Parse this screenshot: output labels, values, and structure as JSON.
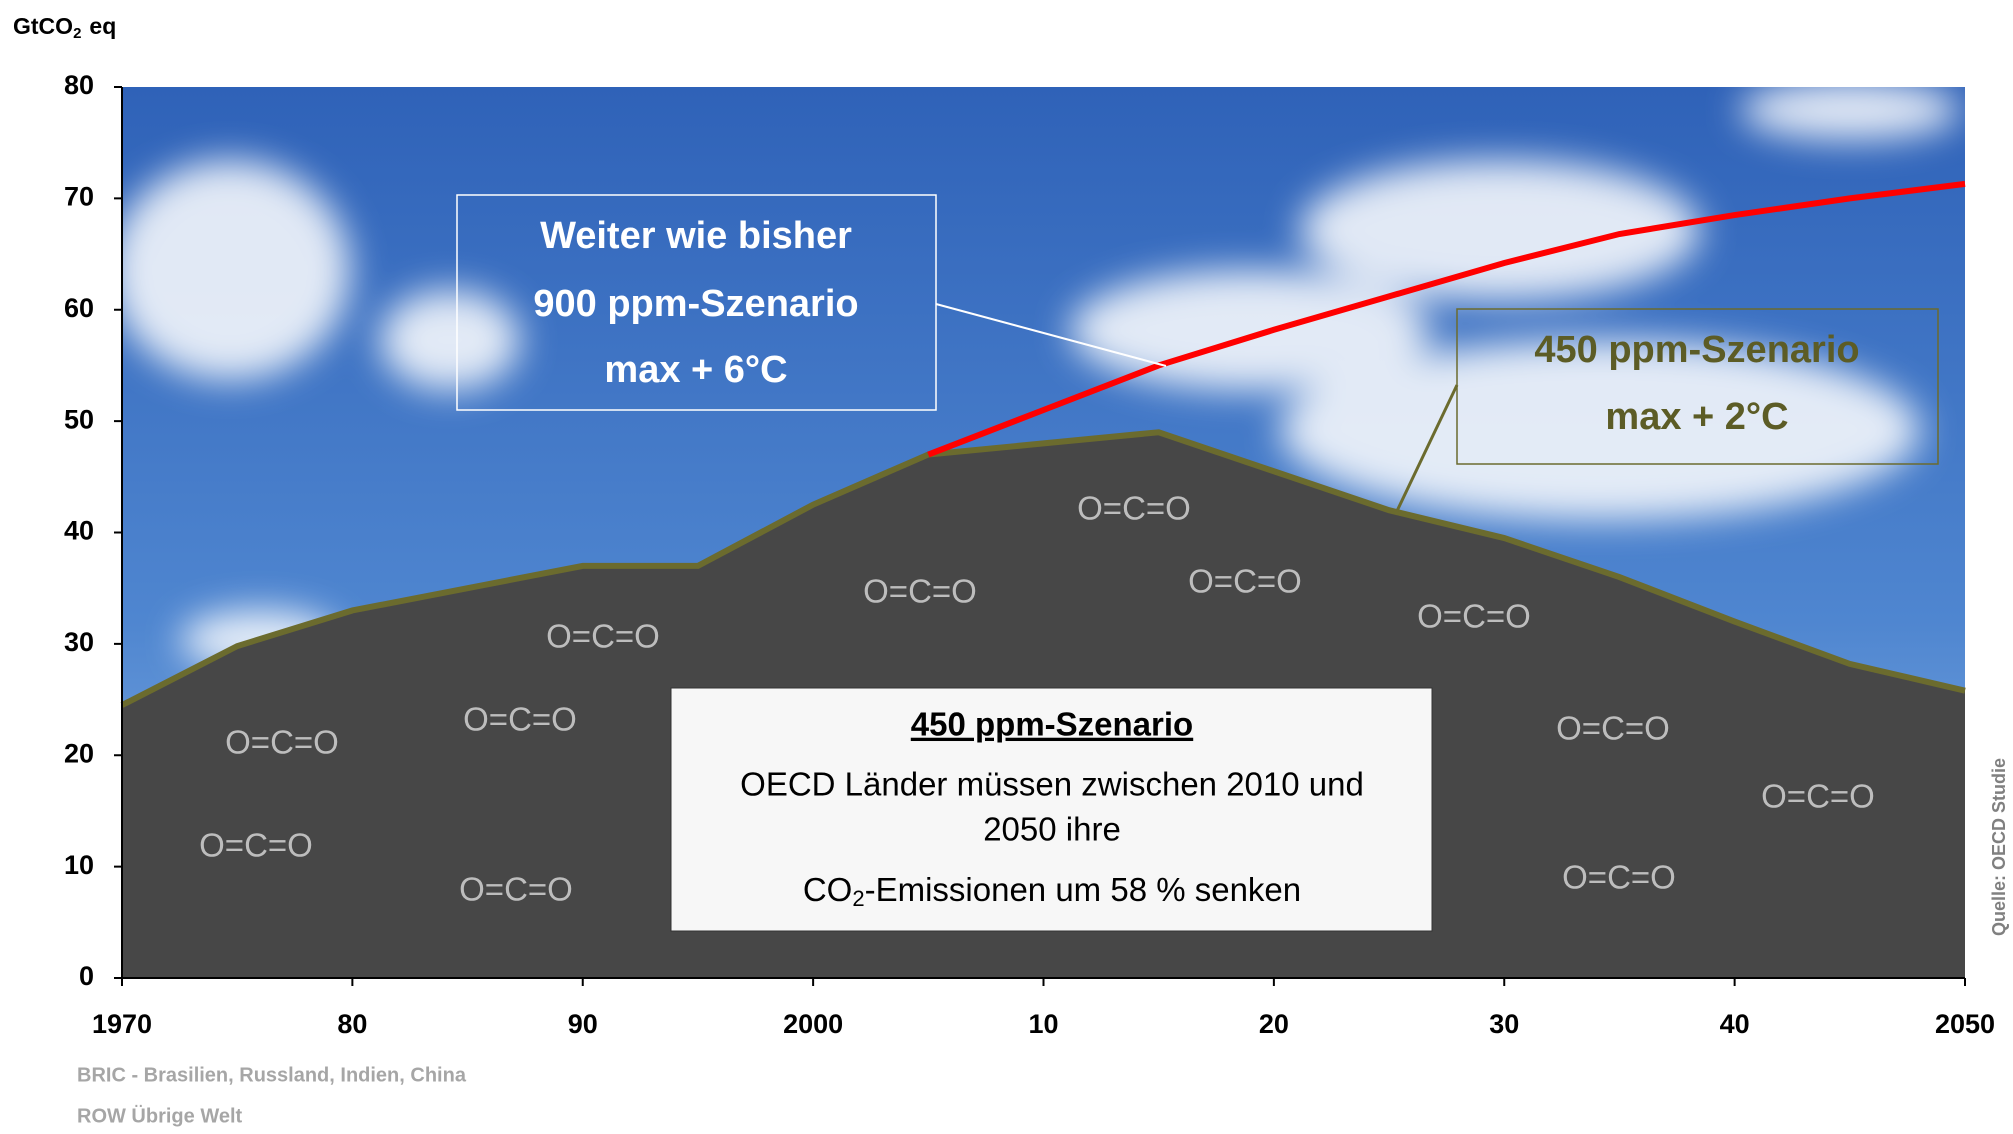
{
  "chart_data": {
    "type": "area",
    "y_label": [
      "GtCO",
      "2",
      "eq"
    ],
    "ylim": [
      0,
      80
    ],
    "yticks": [
      0,
      10,
      20,
      30,
      40,
      50,
      60,
      70,
      80
    ],
    "xlim": [
      1970,
      2050
    ],
    "xticks": [
      1970,
      {
        "value": 1980,
        "label": "80"
      },
      {
        "value": 1990,
        "label": "90"
      },
      2000,
      {
        "value": 2010,
        "label": "10"
      },
      {
        "value": 2020,
        "label": "20"
      },
      {
        "value": 2030,
        "label": "30"
      },
      {
        "value": 2040,
        "label": "40"
      },
      2050
    ],
    "series": [
      {
        "name": "450 ppm-Szenario",
        "style": "area",
        "color": "#474747",
        "line_color": "#6b6b2e",
        "x": [
          1970,
          1975,
          1980,
          1985,
          1990,
          1995,
          2000,
          2005,
          2010,
          2015,
          2020,
          2025,
          2030,
          2035,
          2040,
          2045,
          2050
        ],
        "values": [
          24.5,
          29.8,
          33,
          35,
          37,
          37,
          42.5,
          47,
          48,
          49,
          45.5,
          42,
          39.5,
          36,
          32,
          28.2,
          25.8
        ]
      },
      {
        "name": "900 ppm-Szenario",
        "style": "line",
        "color": "#ff0000",
        "x": [
          2005,
          2010,
          2015,
          2020,
          2025,
          2030,
          2035,
          2040,
          2045,
          2050
        ],
        "values": [
          47,
          51,
          55,
          58.2,
          61.2,
          64.2,
          66.8,
          68.5,
          70,
          71.3
        ]
      }
    ],
    "annotations": {
      "bau_1": "Weiter wie bisher",
      "bau_3": "max + 6°C",
      "low_2": "max + 2°C",
      "box_title": "450 ppm-Szenario",
      "box_line1": "OECD Länder müssen zwischen  2010 und",
      "box_line2": "2050 ihre",
      "box_line3": [
        "CO",
        "2",
        "-Emissionen um 58 % senken"
      ]
    },
    "molecule_labels": [
      "O=C=O",
      "O=C=O",
      "O=C=O",
      "O=C=O",
      "O=C=O",
      "O=C=O",
      "O=C=O",
      "O=C=O",
      "O=C=O",
      "O=C=O",
      "O=C=O",
      "O=C=O"
    ],
    "source": "Quelle: OECD Studie",
    "footnotes": [
      "BRIC - Brasilien, Russland, Indien, China",
      "ROW Übrige Welt"
    ]
  }
}
